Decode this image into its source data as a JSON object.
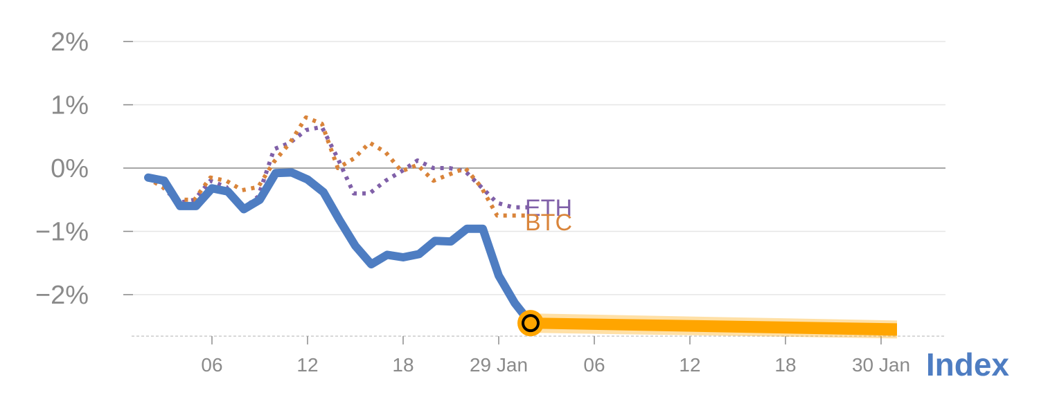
{
  "chart_data": {
    "type": "line",
    "title": "",
    "ylabel": "",
    "xlabel": "",
    "ylim": [
      -2.7,
      2.2
    ],
    "y_ticks": [
      2,
      1,
      0,
      -1,
      -2
    ],
    "y_tick_labels": [
      "2%",
      "1%",
      "0%",
      "−1%",
      "−2%"
    ],
    "x_domain": [
      0,
      48
    ],
    "x_ticks": [
      4,
      10,
      16,
      22,
      28,
      34,
      40,
      46
    ],
    "x_tick_labels": [
      "06",
      "12",
      "18",
      "29 Jan",
      "06",
      "12",
      "18",
      "30 Jan"
    ],
    "zero_line": true,
    "series": [
      {
        "name": "ETH",
        "label": "ETH",
        "color": "#8060a8",
        "style": "dotted",
        "x": [
          -0.1,
          0.9,
          1.9,
          2.9,
          3.9,
          4.9,
          5.9,
          6.9,
          7.9,
          8.9,
          9.9,
          10.9,
          11.9,
          12.9,
          13.9,
          14.9,
          15.9,
          16.9,
          17.9,
          18.9,
          19.9,
          20.9,
          21.9,
          22.9,
          23.9
        ],
        "y": [
          -0.15,
          -0.3,
          -0.55,
          -0.5,
          -0.2,
          -0.3,
          -0.65,
          -0.45,
          0.3,
          0.4,
          0.6,
          0.65,
          0.15,
          -0.4,
          -0.4,
          -0.2,
          -0.05,
          0.12,
          0.0,
          0.0,
          -0.05,
          -0.3,
          -0.55,
          -0.62,
          -0.62
        ]
      },
      {
        "name": "BTC",
        "label": "BTC",
        "color": "#d9843a",
        "style": "dotted",
        "x": [
          -0.1,
          0.9,
          1.9,
          2.9,
          3.9,
          4.9,
          5.9,
          6.9,
          7.9,
          8.9,
          9.9,
          10.9,
          11.9,
          12.9,
          13.9,
          14.9,
          15.9,
          16.9,
          17.9,
          18.9,
          19.9,
          20.9,
          21.9,
          22.9,
          23.9
        ],
        "y": [
          -0.15,
          -0.3,
          -0.5,
          -0.5,
          -0.15,
          -0.2,
          -0.35,
          -0.3,
          0.1,
          0.4,
          0.8,
          0.7,
          0.0,
          0.15,
          0.4,
          0.25,
          -0.05,
          0.05,
          -0.2,
          -0.1,
          0.0,
          -0.3,
          -0.75,
          -0.75,
          -0.75
        ]
      },
      {
        "name": "Index",
        "label": "Index",
        "color": "#4e7dc2",
        "style": "solid",
        "x": [
          0,
          1,
          2,
          3,
          4,
          5,
          6,
          7,
          8,
          9,
          10,
          11,
          12,
          13,
          14,
          15,
          16,
          17,
          18,
          19,
          20,
          21,
          22,
          23,
          24
        ],
        "y": [
          -0.15,
          -0.2,
          -0.6,
          -0.6,
          -0.32,
          -0.37,
          -0.65,
          -0.5,
          -0.08,
          -0.07,
          -0.18,
          -0.38,
          -0.82,
          -1.23,
          -1.52,
          -1.37,
          -1.41,
          -1.36,
          -1.15,
          -1.16,
          -0.96,
          -0.96,
          -1.7,
          -2.13,
          -2.45
        ]
      },
      {
        "name": "Forecast",
        "label": "",
        "color": "#ffa500",
        "style": "band",
        "x": [
          24,
          47
        ],
        "y": [
          -2.45,
          -2.55
        ]
      }
    ],
    "marker": {
      "x": 24,
      "y": -2.45,
      "fill": "#ffa500",
      "ring": "#000000"
    }
  }
}
